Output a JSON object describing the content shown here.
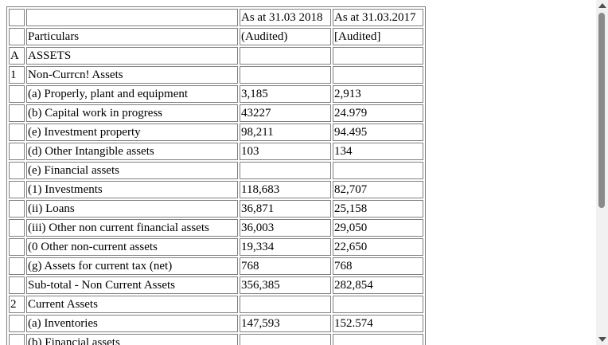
{
  "table": {
    "header": [
      {
        "num": "",
        "particulars": "",
        "col_a": "As at 31.03 2018",
        "col_b": "As at 31.03.2017"
      },
      {
        "num": "",
        "particulars": "Particulars",
        "col_a": "(Audited)",
        "col_b": "[Audited]"
      }
    ],
    "rows": [
      {
        "num": "A",
        "particulars": "ASSETS",
        "col_a": "",
        "col_b": ""
      },
      {
        "num": "1",
        "particulars": "Non-Currcn! Assets",
        "col_a": "",
        "col_b": ""
      },
      {
        "num": "",
        "particulars": "(a) Properly, plant and equipment",
        "col_a": "3,185",
        "col_b": "2,913"
      },
      {
        "num": "",
        "particulars": "(b) Capital work in progress",
        "col_a": "43227",
        "col_b": "24.979"
      },
      {
        "num": "",
        "particulars": "(e) Investment property",
        "col_a": "98,211",
        "col_b": "94.495"
      },
      {
        "num": "",
        "particulars": "(d) Other Intangible assets",
        "col_a": "103",
        "col_b": "134"
      },
      {
        "num": "",
        "particulars": "(e) Financial assets",
        "col_a": "",
        "col_b": ""
      },
      {
        "num": "",
        "particulars": "(1) Investments",
        "col_a": "118,683",
        "col_b": "82,707"
      },
      {
        "num": "",
        "particulars": "(ii) Loans",
        "col_a": "36,871",
        "col_b": "25,158"
      },
      {
        "num": "",
        "particulars": "(iii) Other non current financial assets",
        "col_a": "36,003",
        "col_b": "29,050"
      },
      {
        "num": "",
        "particulars": "(0 Other non-current assets",
        "col_a": "19,334",
        "col_b": "22,650"
      },
      {
        "num": "",
        "particulars": "(g) Assets for current tax (net)",
        "col_a": "768",
        "col_b": "768"
      },
      {
        "num": "",
        "particulars": "Sub-total - Non Current Assets",
        "col_a": "356,385",
        "col_b": "282,854"
      },
      {
        "num": "2",
        "particulars": "Current Assets",
        "col_a": "",
        "col_b": ""
      },
      {
        "num": "",
        "particulars": "(a) Inventories",
        "col_a": "147,593",
        "col_b": "152.574"
      },
      {
        "num": "",
        "particulars": "(b) Financial assets",
        "col_a": "",
        "col_b": ""
      }
    ]
  }
}
